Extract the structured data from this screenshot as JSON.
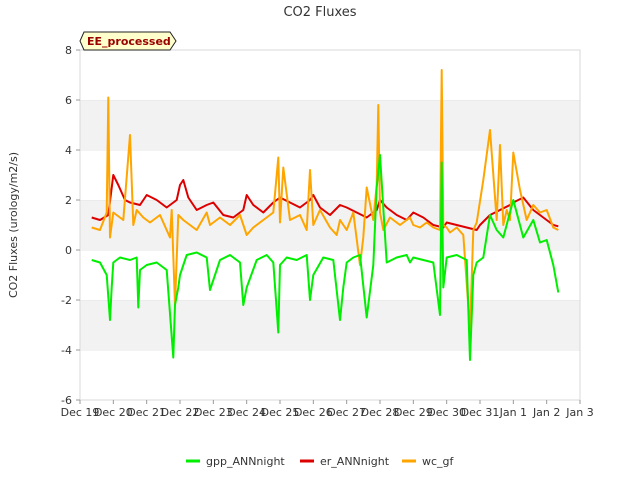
{
  "chart_data": {
    "type": "line",
    "title": "CO2 Fluxes",
    "ylabel": "CO2 Fluxes (urology/m2/s)",
    "xlabel": "",
    "ylim": [
      -6,
      8
    ],
    "yticks": [
      -6,
      -4,
      -2,
      0,
      2,
      4,
      6,
      8
    ],
    "xlim": [
      0,
      15
    ],
    "xticks": [
      {
        "x": 0,
        "label": "Dec 19"
      },
      {
        "x": 1,
        "label": "Dec 20"
      },
      {
        "x": 2,
        "label": "Dec 21"
      },
      {
        "x": 3,
        "label": "Dec 22"
      },
      {
        "x": 4,
        "label": "Dec 23"
      },
      {
        "x": 5,
        "label": "Dec 24"
      },
      {
        "x": 6,
        "label": "Dec 25"
      },
      {
        "x": 7,
        "label": "Dec 26"
      },
      {
        "x": 8,
        "label": "Dec 27"
      },
      {
        "x": 9,
        "label": "Dec 28"
      },
      {
        "x": 10,
        "label": "Dec 29"
      },
      {
        "x": 11,
        "label": "Dec 30"
      },
      {
        "x": 12,
        "label": "Dec 31"
      },
      {
        "x": 13,
        "label": "Jan 1"
      },
      {
        "x": 14,
        "label": "Jan 2"
      },
      {
        "x": 15,
        "label": "Jan 3"
      }
    ],
    "annotation": "EE_processed",
    "grid": "horizontal bands",
    "legend_position": "bottom",
    "series": [
      {
        "name": "er_ANNnight",
        "color": "#dd0000",
        "x": [
          0.35,
          0.6,
          0.85,
          1.0,
          1.15,
          1.35,
          1.5,
          1.8,
          2.0,
          2.3,
          2.6,
          2.9,
          3.0,
          3.1,
          3.25,
          3.5,
          3.8,
          4.0,
          4.3,
          4.6,
          4.9,
          5.0,
          5.2,
          5.5,
          5.8,
          6.0,
          6.3,
          6.6,
          6.9,
          7.0,
          7.2,
          7.5,
          7.8,
          8.0,
          8.3,
          8.6,
          8.9,
          9.0,
          9.2,
          9.5,
          9.8,
          10.0,
          10.3,
          10.6,
          10.9,
          11.0,
          11.3,
          11.6,
          11.9,
          12.0,
          12.3,
          12.6,
          12.9,
          13.0,
          13.3,
          13.6,
          13.9,
          14.2,
          14.35
        ],
        "y": [
          1.3,
          1.2,
          1.4,
          3.0,
          2.6,
          2.0,
          1.9,
          1.8,
          2.2,
          2.0,
          1.7,
          2.0,
          2.6,
          2.8,
          2.1,
          1.6,
          1.8,
          1.9,
          1.4,
          1.3,
          1.6,
          2.2,
          1.8,
          1.5,
          1.9,
          2.1,
          1.9,
          1.7,
          2.0,
          2.2,
          1.7,
          1.4,
          1.8,
          1.7,
          1.5,
          1.3,
          1.6,
          2.0,
          1.7,
          1.4,
          1.2,
          1.5,
          1.3,
          1.0,
          0.9,
          1.1,
          1.0,
          0.9,
          0.8,
          1.0,
          1.4,
          1.6,
          1.8,
          1.9,
          2.1,
          1.6,
          1.3,
          1.0,
          0.95
        ]
      },
      {
        "name": "wc_gf",
        "color": "#ffa500",
        "x": [
          0.35,
          0.6,
          0.8,
          0.85,
          0.9,
          1.0,
          1.3,
          1.5,
          1.6,
          1.7,
          1.9,
          2.1,
          2.4,
          2.7,
          2.75,
          2.85,
          2.95,
          3.1,
          3.5,
          3.8,
          3.9,
          4.2,
          4.5,
          4.8,
          5.0,
          5.2,
          5.5,
          5.8,
          5.95,
          6.0,
          6.1,
          6.3,
          6.6,
          6.8,
          6.9,
          7.0,
          7.2,
          7.5,
          7.7,
          7.8,
          8.0,
          8.2,
          8.4,
          8.5,
          8.6,
          8.8,
          8.9,
          8.95,
          9.0,
          9.1,
          9.3,
          9.6,
          9.9,
          10.0,
          10.2,
          10.4,
          10.6,
          10.8,
          10.85,
          10.9,
          11.0,
          11.1,
          11.3,
          11.5,
          11.7,
          11.8,
          11.9,
          12.1,
          12.3,
          12.5,
          12.6,
          12.7,
          12.8,
          12.9,
          13.0,
          13.2,
          13.4,
          13.6,
          13.8,
          14.0,
          14.2,
          14.35
        ],
        "y": [
          0.9,
          0.8,
          1.5,
          6.1,
          0.5,
          1.5,
          1.2,
          4.6,
          1.0,
          1.6,
          1.3,
          1.1,
          1.4,
          0.5,
          1.6,
          -2.2,
          1.4,
          1.2,
          0.8,
          1.5,
          1.0,
          1.3,
          1.0,
          1.4,
          0.6,
          0.9,
          1.2,
          1.5,
          3.7,
          1.1,
          3.3,
          1.2,
          1.4,
          0.8,
          3.2,
          1.0,
          1.6,
          0.9,
          0.6,
          1.2,
          0.8,
          1.5,
          -0.6,
          0.5,
          2.5,
          1.2,
          2.6,
          5.8,
          1.5,
          0.8,
          1.3,
          1.0,
          1.3,
          1.0,
          0.9,
          1.1,
          0.9,
          0.8,
          7.2,
          1.0,
          0.9,
          0.7,
          0.9,
          0.6,
          -3.2,
          0.8,
          1.1,
          2.8,
          4.8,
          1.2,
          4.2,
          1.0,
          1.6,
          1.2,
          3.9,
          2.4,
          1.2,
          1.8,
          1.5,
          1.6,
          0.9,
          0.8
        ]
      },
      {
        "name": "gpp_ANNnight",
        "color": "#00ee00",
        "x": [
          0.35,
          0.6,
          0.8,
          0.9,
          0.95,
          1.0,
          1.2,
          1.5,
          1.7,
          1.75,
          1.8,
          2.0,
          2.3,
          2.6,
          2.8,
          2.85,
          2.95,
          3.0,
          3.2,
          3.5,
          3.8,
          3.9,
          4.2,
          4.5,
          4.8,
          4.9,
          5.0,
          5.3,
          5.6,
          5.8,
          5.95,
          6.0,
          6.2,
          6.5,
          6.8,
          6.9,
          7.0,
          7.3,
          7.6,
          7.8,
          7.9,
          8.0,
          8.2,
          8.4,
          8.6,
          8.8,
          8.9,
          9.0,
          9.2,
          9.5,
          9.8,
          9.9,
          10.0,
          10.3,
          10.6,
          10.8,
          10.85,
          10.9,
          11.0,
          11.3,
          11.6,
          11.7,
          11.8,
          11.9,
          12.1,
          12.3,
          12.5,
          12.7,
          13.0,
          13.3,
          13.6,
          13.8,
          14.0,
          14.2,
          14.35
        ],
        "y": [
          -0.4,
          -0.5,
          -1.0,
          -2.8,
          -1.5,
          -0.5,
          -0.3,
          -0.4,
          -0.3,
          -2.3,
          -0.8,
          -0.6,
          -0.5,
          -0.8,
          -4.3,
          -2.2,
          -1.5,
          -1.0,
          -0.2,
          -0.1,
          -0.3,
          -1.6,
          -0.4,
          -0.2,
          -0.5,
          -2.2,
          -1.5,
          -0.4,
          -0.2,
          -0.5,
          -3.3,
          -0.6,
          -0.3,
          -0.4,
          -0.2,
          -2.0,
          -1.0,
          -0.3,
          -0.4,
          -2.8,
          -1.5,
          -0.5,
          -0.3,
          -0.2,
          -2.7,
          -0.6,
          2.5,
          3.8,
          -0.5,
          -0.3,
          -0.2,
          -0.5,
          -0.3,
          -0.4,
          -0.5,
          -2.6,
          3.5,
          -1.5,
          -0.3,
          -0.2,
          -0.4,
          -4.4,
          -1.0,
          -0.5,
          -0.3,
          1.4,
          0.8,
          0.5,
          2.0,
          0.5,
          1.2,
          0.3,
          0.4,
          -0.6,
          -1.7
        ]
      }
    ]
  }
}
